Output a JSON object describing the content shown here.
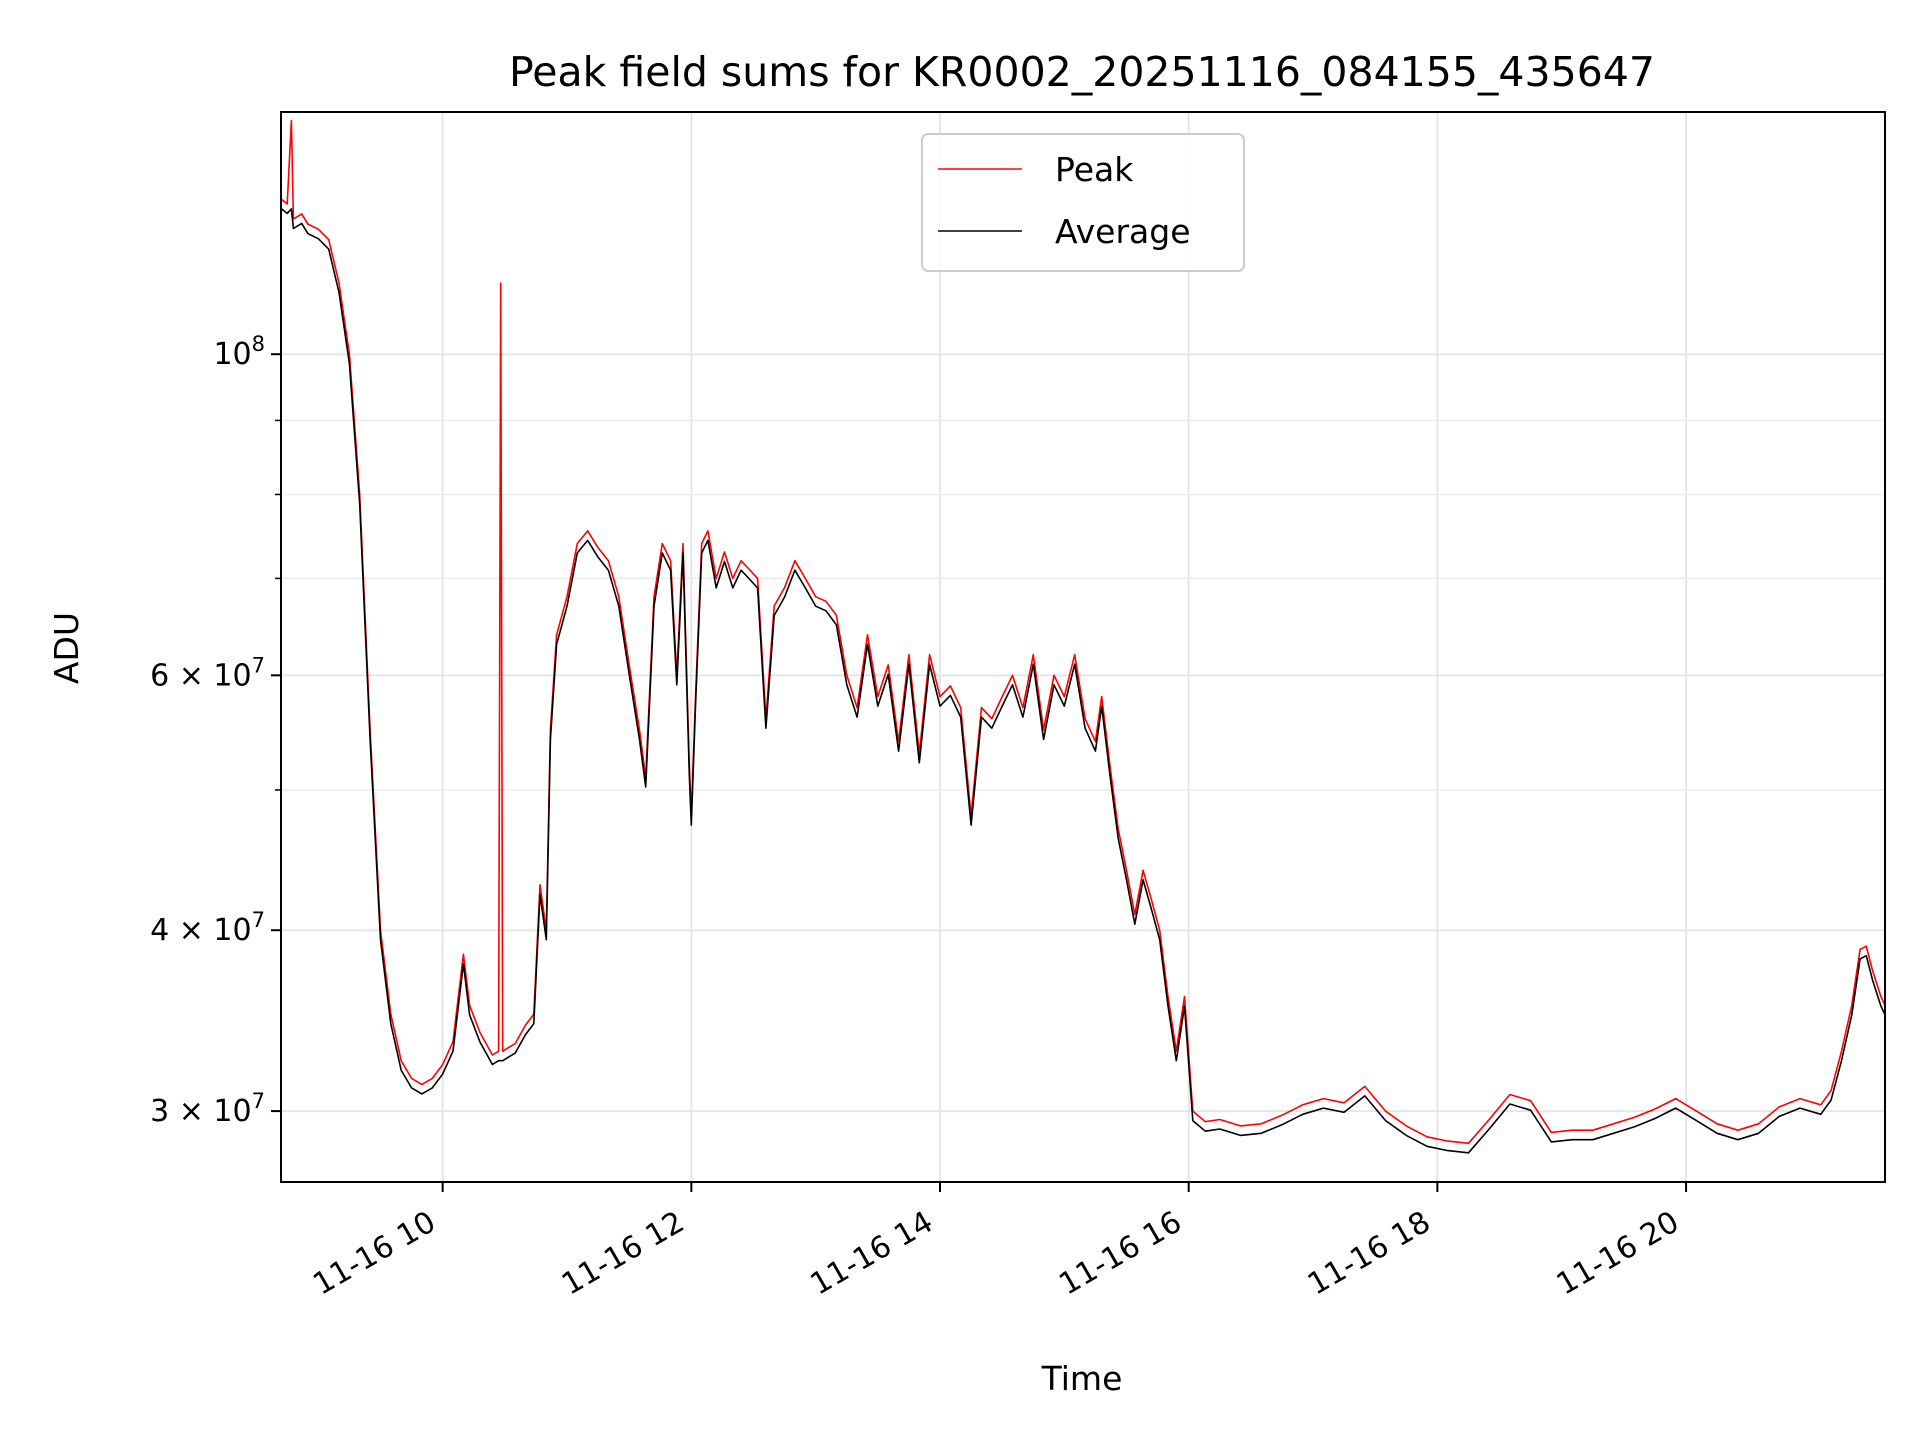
{
  "chart_data": {
    "type": "line",
    "title": "Peak field sums for KR0002_20251116_084155_435647",
    "xlabel": "Time",
    "ylabel": "ADU",
    "y_scale": "log",
    "ylim": [
      26800000,
      147000000
    ],
    "xlim": [
      "2025-11-16 08:42",
      "2025-11-16 21:36"
    ],
    "grid": true,
    "legend": "upper-center",
    "x_ticks": [
      {
        "t": "2025-11-16 10:00",
        "label": "11-16 10"
      },
      {
        "t": "2025-11-16 12:00",
        "label": "11-16 12"
      },
      {
        "t": "2025-11-16 14:00",
        "label": "11-16 14"
      },
      {
        "t": "2025-11-16 16:00",
        "label": "11-16 16"
      },
      {
        "t": "2025-11-16 18:00",
        "label": "11-16 18"
      },
      {
        "t": "2025-11-16 20:00",
        "label": "11-16 20"
      }
    ],
    "y_major_ticks": [
      {
        "value": 100000000,
        "base": "10",
        "exp": "8"
      },
      {
        "value": 60000000,
        "base": "6 × 10",
        "exp": "7"
      },
      {
        "value": 40000000,
        "base": "4 × 10",
        "exp": "7"
      },
      {
        "value": 30000000,
        "base": "3 × 10",
        "exp": "7"
      }
    ],
    "y_minor_ticks": [
      90000000,
      80000000,
      70000000,
      50000000
    ],
    "series": [
      {
        "name": "Peak",
        "color": "#ff0000",
        "points": [
          [
            "2025-11-16 08:42",
            128000000.0
          ],
          [
            "2025-11-16 08:45",
            127000000.0
          ],
          [
            "2025-11-16 08:47",
            145000000.0
          ],
          [
            "2025-11-16 08:48",
            124000000.0
          ],
          [
            "2025-11-16 08:52",
            125000000.0
          ],
          [
            "2025-11-16 08:55",
            123000000.0
          ],
          [
            "2025-11-16 09:00",
            122000000.0
          ],
          [
            "2025-11-16 09:05",
            120000000.0
          ],
          [
            "2025-11-16 09:10",
            112000000.0
          ],
          [
            "2025-11-16 09:15",
            100000000.0
          ],
          [
            "2025-11-16 09:20",
            80000000.0
          ],
          [
            "2025-11-16 09:25",
            55000000.0
          ],
          [
            "2025-11-16 09:30",
            40000000.0
          ],
          [
            "2025-11-16 09:35",
            35000000.0
          ],
          [
            "2025-11-16 09:40",
            32500000.0
          ],
          [
            "2025-11-16 09:45",
            31600000.0
          ],
          [
            "2025-11-16 09:50",
            31300000.0
          ],
          [
            "2025-11-16 09:55",
            31600000.0
          ],
          [
            "2025-11-16 10:00",
            32300000.0
          ],
          [
            "2025-11-16 10:05",
            33500000.0
          ],
          [
            "2025-11-16 10:10",
            38500000.0
          ],
          [
            "2025-11-16 10:13",
            35500000.0
          ],
          [
            "2025-11-16 10:18",
            34000000.0
          ],
          [
            "2025-11-16 10:24",
            32800000.0
          ],
          [
            "2025-11-16 10:27",
            33000000.0
          ],
          [
            "2025-11-16 10:28",
            112000000.0
          ],
          [
            "2025-11-16 10:29",
            33000000.0
          ],
          [
            "2025-11-16 10:35",
            33400000.0
          ],
          [
            "2025-11-16 10:40",
            34400000.0
          ],
          [
            "2025-11-16 10:44",
            35000000.0
          ],
          [
            "2025-11-16 10:47",
            43000000.0
          ],
          [
            "2025-11-16 10:50",
            40000000.0
          ],
          [
            "2025-11-16 10:52",
            55000000.0
          ],
          [
            "2025-11-16 10:55",
            64000000.0
          ],
          [
            "2025-11-16 11:00",
            68000000.0
          ],
          [
            "2025-11-16 11:05",
            74000000.0
          ],
          [
            "2025-11-16 11:10",
            75500000.0
          ],
          [
            "2025-11-16 11:15",
            73500000.0
          ],
          [
            "2025-11-16 11:20",
            72000000.0
          ],
          [
            "2025-11-16 11:25",
            68000000.0
          ],
          [
            "2025-11-16 11:30",
            61000000.0
          ],
          [
            "2025-11-16 11:35",
            55000000.0
          ],
          [
            "2025-11-16 11:38",
            51000000.0
          ],
          [
            "2025-11-16 11:42",
            68000000.0
          ],
          [
            "2025-11-16 11:46",
            74000000.0
          ],
          [
            "2025-11-16 11:50",
            72000000.0
          ],
          [
            "2025-11-16 11:53",
            60000000.0
          ],
          [
            "2025-11-16 11:56",
            74000000.0
          ],
          [
            "2025-11-16 11:59",
            52000000.0
          ],
          [
            "2025-11-16 12:00",
            48000000.0
          ],
          [
            "2025-11-16 12:02",
            58000000.0
          ],
          [
            "2025-11-16 12:05",
            74000000.0
          ],
          [
            "2025-11-16 12:08",
            75500000.0
          ],
          [
            "2025-11-16 12:12",
            70000000.0
          ],
          [
            "2025-11-16 12:16",
            73000000.0
          ],
          [
            "2025-11-16 12:20",
            70000000.0
          ],
          [
            "2025-11-16 12:24",
            72000000.0
          ],
          [
            "2025-11-16 12:28",
            71000000.0
          ],
          [
            "2025-11-16 12:32",
            70000000.0
          ],
          [
            "2025-11-16 12:36",
            56000000.0
          ],
          [
            "2025-11-16 12:40",
            67000000.0
          ],
          [
            "2025-11-16 12:45",
            69000000.0
          ],
          [
            "2025-11-16 12:50",
            72000000.0
          ],
          [
            "2025-11-16 12:55",
            70000000.0
          ],
          [
            "2025-11-16 13:00",
            68000000.0
          ],
          [
            "2025-11-16 13:05",
            67500000.0
          ],
          [
            "2025-11-16 13:10",
            66000000.0
          ],
          [
            "2025-11-16 13:15",
            60000000.0
          ],
          [
            "2025-11-16 13:20",
            57000000.0
          ],
          [
            "2025-11-16 13:25",
            64000000.0
          ],
          [
            "2025-11-16 13:30",
            58000000.0
          ],
          [
            "2025-11-16 13:35",
            61000000.0
          ],
          [
            "2025-11-16 13:40",
            54000000.0
          ],
          [
            "2025-11-16 13:45",
            62000000.0
          ],
          [
            "2025-11-16 13:50",
            53000000.0
          ],
          [
            "2025-11-16 13:55",
            62000000.0
          ],
          [
            "2025-11-16 14:00",
            58000000.0
          ],
          [
            "2025-11-16 14:05",
            59000000.0
          ],
          [
            "2025-11-16 14:10",
            57000000.0
          ],
          [
            "2025-11-16 14:15",
            48000000.0
          ],
          [
            "2025-11-16 14:20",
            57000000.0
          ],
          [
            "2025-11-16 14:25",
            56000000.0
          ],
          [
            "2025-11-16 14:30",
            58000000.0
          ],
          [
            "2025-11-16 14:35",
            60000000.0
          ],
          [
            "2025-11-16 14:40",
            57000000.0
          ],
          [
            "2025-11-16 14:45",
            62000000.0
          ],
          [
            "2025-11-16 14:50",
            55000000.0
          ],
          [
            "2025-11-16 14:55",
            60000000.0
          ],
          [
            "2025-11-16 15:00",
            58000000.0
          ],
          [
            "2025-11-16 15:05",
            62000000.0
          ],
          [
            "2025-11-16 15:10",
            56000000.0
          ],
          [
            "2025-11-16 15:15",
            54000000.0
          ],
          [
            "2025-11-16 15:18",
            58000000.0
          ],
          [
            "2025-11-16 15:22",
            52000000.0
          ],
          [
            "2025-11-16 15:26",
            47000000.0
          ],
          [
            "2025-11-16 15:30",
            44000000.0
          ],
          [
            "2025-11-16 15:34",
            41000000.0
          ],
          [
            "2025-11-16 15:38",
            44000000.0
          ],
          [
            "2025-11-16 15:42",
            42000000.0
          ],
          [
            "2025-11-16 15:46",
            40000000.0
          ],
          [
            "2025-11-16 15:50",
            36000000.0
          ],
          [
            "2025-11-16 15:54",
            33000000.0
          ],
          [
            "2025-11-16 15:58",
            36000000.0
          ],
          [
            "2025-11-16 16:02",
            30000000.0
          ],
          [
            "2025-11-16 16:08",
            29500000.0
          ],
          [
            "2025-11-16 16:15",
            29600000.0
          ],
          [
            "2025-11-16 16:25",
            29300000.0
          ],
          [
            "2025-11-16 16:35",
            29400000.0
          ],
          [
            "2025-11-16 16:45",
            29800000.0
          ],
          [
            "2025-11-16 16:55",
            30300000.0
          ],
          [
            "2025-11-16 17:05",
            30600000.0
          ],
          [
            "2025-11-16 17:15",
            30400000.0
          ],
          [
            "2025-11-16 17:25",
            31200000.0
          ],
          [
            "2025-11-16 17:35",
            30000000.0
          ],
          [
            "2025-11-16 17:45",
            29300000.0
          ],
          [
            "2025-11-16 17:55",
            28800000.0
          ],
          [
            "2025-11-16 18:05",
            28600000.0
          ],
          [
            "2025-11-16 18:15",
            28500000.0
          ],
          [
            "2025-11-16 18:25",
            29600000.0
          ],
          [
            "2025-11-16 18:35",
            30800000.0
          ],
          [
            "2025-11-16 18:45",
            30500000.0
          ],
          [
            "2025-11-16 18:55",
            29000000.0
          ],
          [
            "2025-11-16 19:05",
            29100000.0
          ],
          [
            "2025-11-16 19:15",
            29100000.0
          ],
          [
            "2025-11-16 19:25",
            29400000.0
          ],
          [
            "2025-11-16 19:35",
            29700000.0
          ],
          [
            "2025-11-16 19:45",
            30100000.0
          ],
          [
            "2025-11-16 19:55",
            30600000.0
          ],
          [
            "2025-11-16 20:05",
            30000000.0
          ],
          [
            "2025-11-16 20:15",
            29400000.0
          ],
          [
            "2025-11-16 20:25",
            29100000.0
          ],
          [
            "2025-11-16 20:35",
            29400000.0
          ],
          [
            "2025-11-16 20:45",
            30200000.0
          ],
          [
            "2025-11-16 20:55",
            30600000.0
          ],
          [
            "2025-11-16 21:05",
            30300000.0
          ],
          [
            "2025-11-16 21:10",
            31000000.0
          ],
          [
            "2025-11-16 21:15",
            33000000.0
          ],
          [
            "2025-11-16 21:20",
            35500000.0
          ],
          [
            "2025-11-16 21:24",
            38800000.0
          ],
          [
            "2025-11-16 21:27",
            39000000.0
          ],
          [
            "2025-11-16 21:30",
            37500000.0
          ],
          [
            "2025-11-16 21:34",
            36000000.0
          ],
          [
            "2025-11-16 21:36",
            35500000.0
          ]
        ]
      },
      {
        "name": "Average",
        "color": "#000000",
        "points": []
      }
    ]
  }
}
